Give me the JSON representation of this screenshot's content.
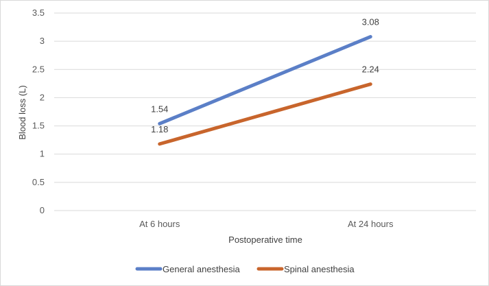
{
  "chart_data": {
    "type": "line",
    "categories": [
      "At 6 hours",
      "At 24 hours"
    ],
    "series": [
      {
        "name": "General anesthesia",
        "values": [
          1.54,
          3.08
        ],
        "color": "#5b7fc7",
        "labels": [
          "1.54",
          "3.08"
        ]
      },
      {
        "name": "Spinal anesthesia",
        "values": [
          1.18,
          2.24
        ],
        "color": "#c8652c",
        "labels": [
          "1.18",
          "2.24"
        ]
      }
    ],
    "xlabel": "Postoperative time",
    "ylabel": "Blood loss (L)",
    "ylim": [
      0,
      3.5
    ],
    "yticks": [
      "0",
      "0.5",
      "1",
      "1.5",
      "2",
      "2.5",
      "3",
      "3.5"
    ],
    "grid": true,
    "legend_position": "bottom"
  }
}
